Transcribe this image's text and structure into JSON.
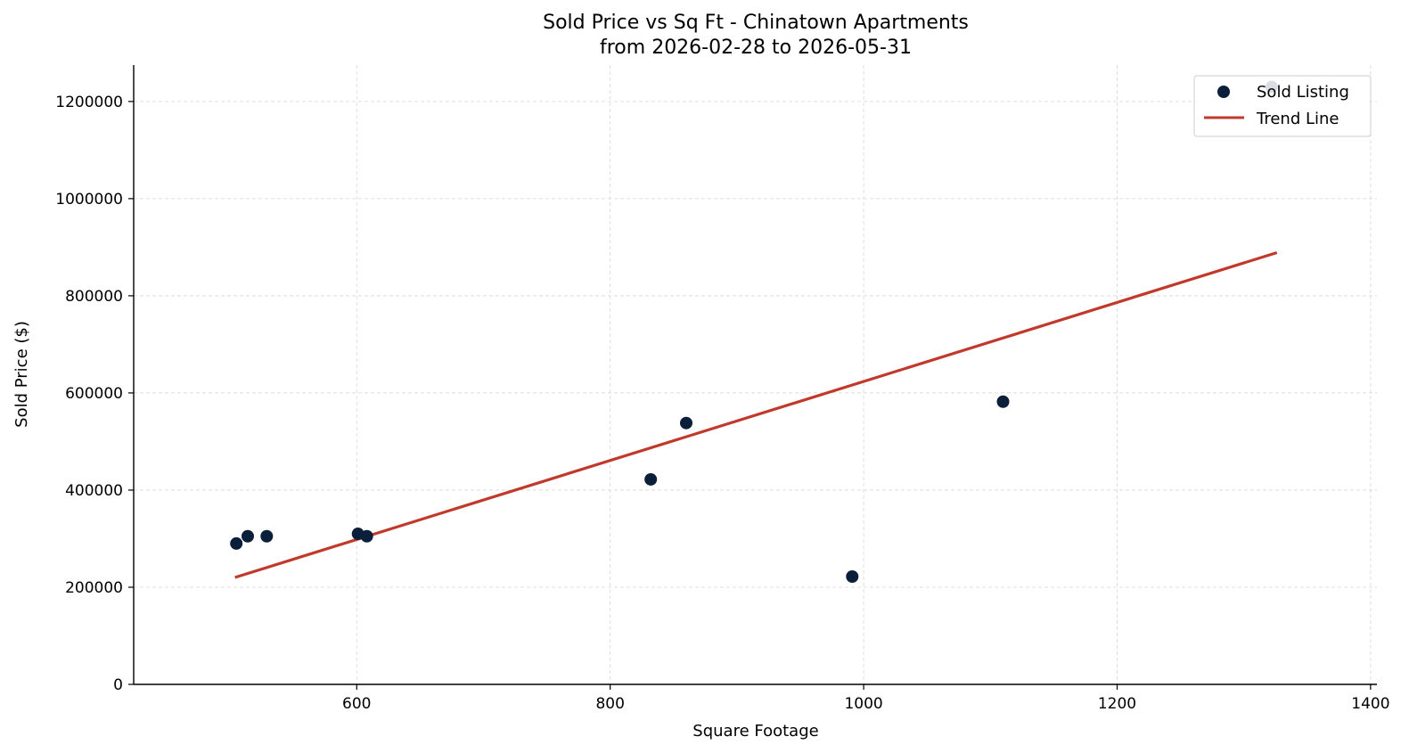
{
  "chart_data": {
    "type": "scatter",
    "title": "Sold Price vs Sq Ft - Chinatown Apartments",
    "subtitle": "from 2026-02-28 to 2026-05-31",
    "xlabel": "Square Footage",
    "ylabel": "Sold Price ($)",
    "xlim": [
      424,
      1405
    ],
    "ylim": [
      0,
      1275000
    ],
    "xticks": [
      "600",
      "800",
      "1000",
      "1200",
      "1400"
    ],
    "yticks": [
      "0",
      "200000",
      "400000",
      "600000",
      "800000",
      "1000000",
      "1200000"
    ],
    "grid": true,
    "legend_position": "top-right",
    "series": [
      {
        "name": "Sold Listing",
        "kind": "scatter",
        "color": "#0c1f3a",
        "points": [
          {
            "x": 505,
            "y": 290000
          },
          {
            "x": 514,
            "y": 305000
          },
          {
            "x": 529,
            "y": 305000
          },
          {
            "x": 601,
            "y": 310000
          },
          {
            "x": 608,
            "y": 305000
          },
          {
            "x": 832,
            "y": 422000
          },
          {
            "x": 860,
            "y": 538000
          },
          {
            "x": 991,
            "y": 222000
          },
          {
            "x": 1110,
            "y": 582000
          },
          {
            "x": 1322,
            "y": 1230000
          }
        ]
      },
      {
        "name": "Trend Line",
        "kind": "line",
        "color": "#c0392b",
        "points": [
          {
            "x": 505,
            "y": 221000
          },
          {
            "x": 1325,
            "y": 888000
          }
        ]
      }
    ]
  }
}
